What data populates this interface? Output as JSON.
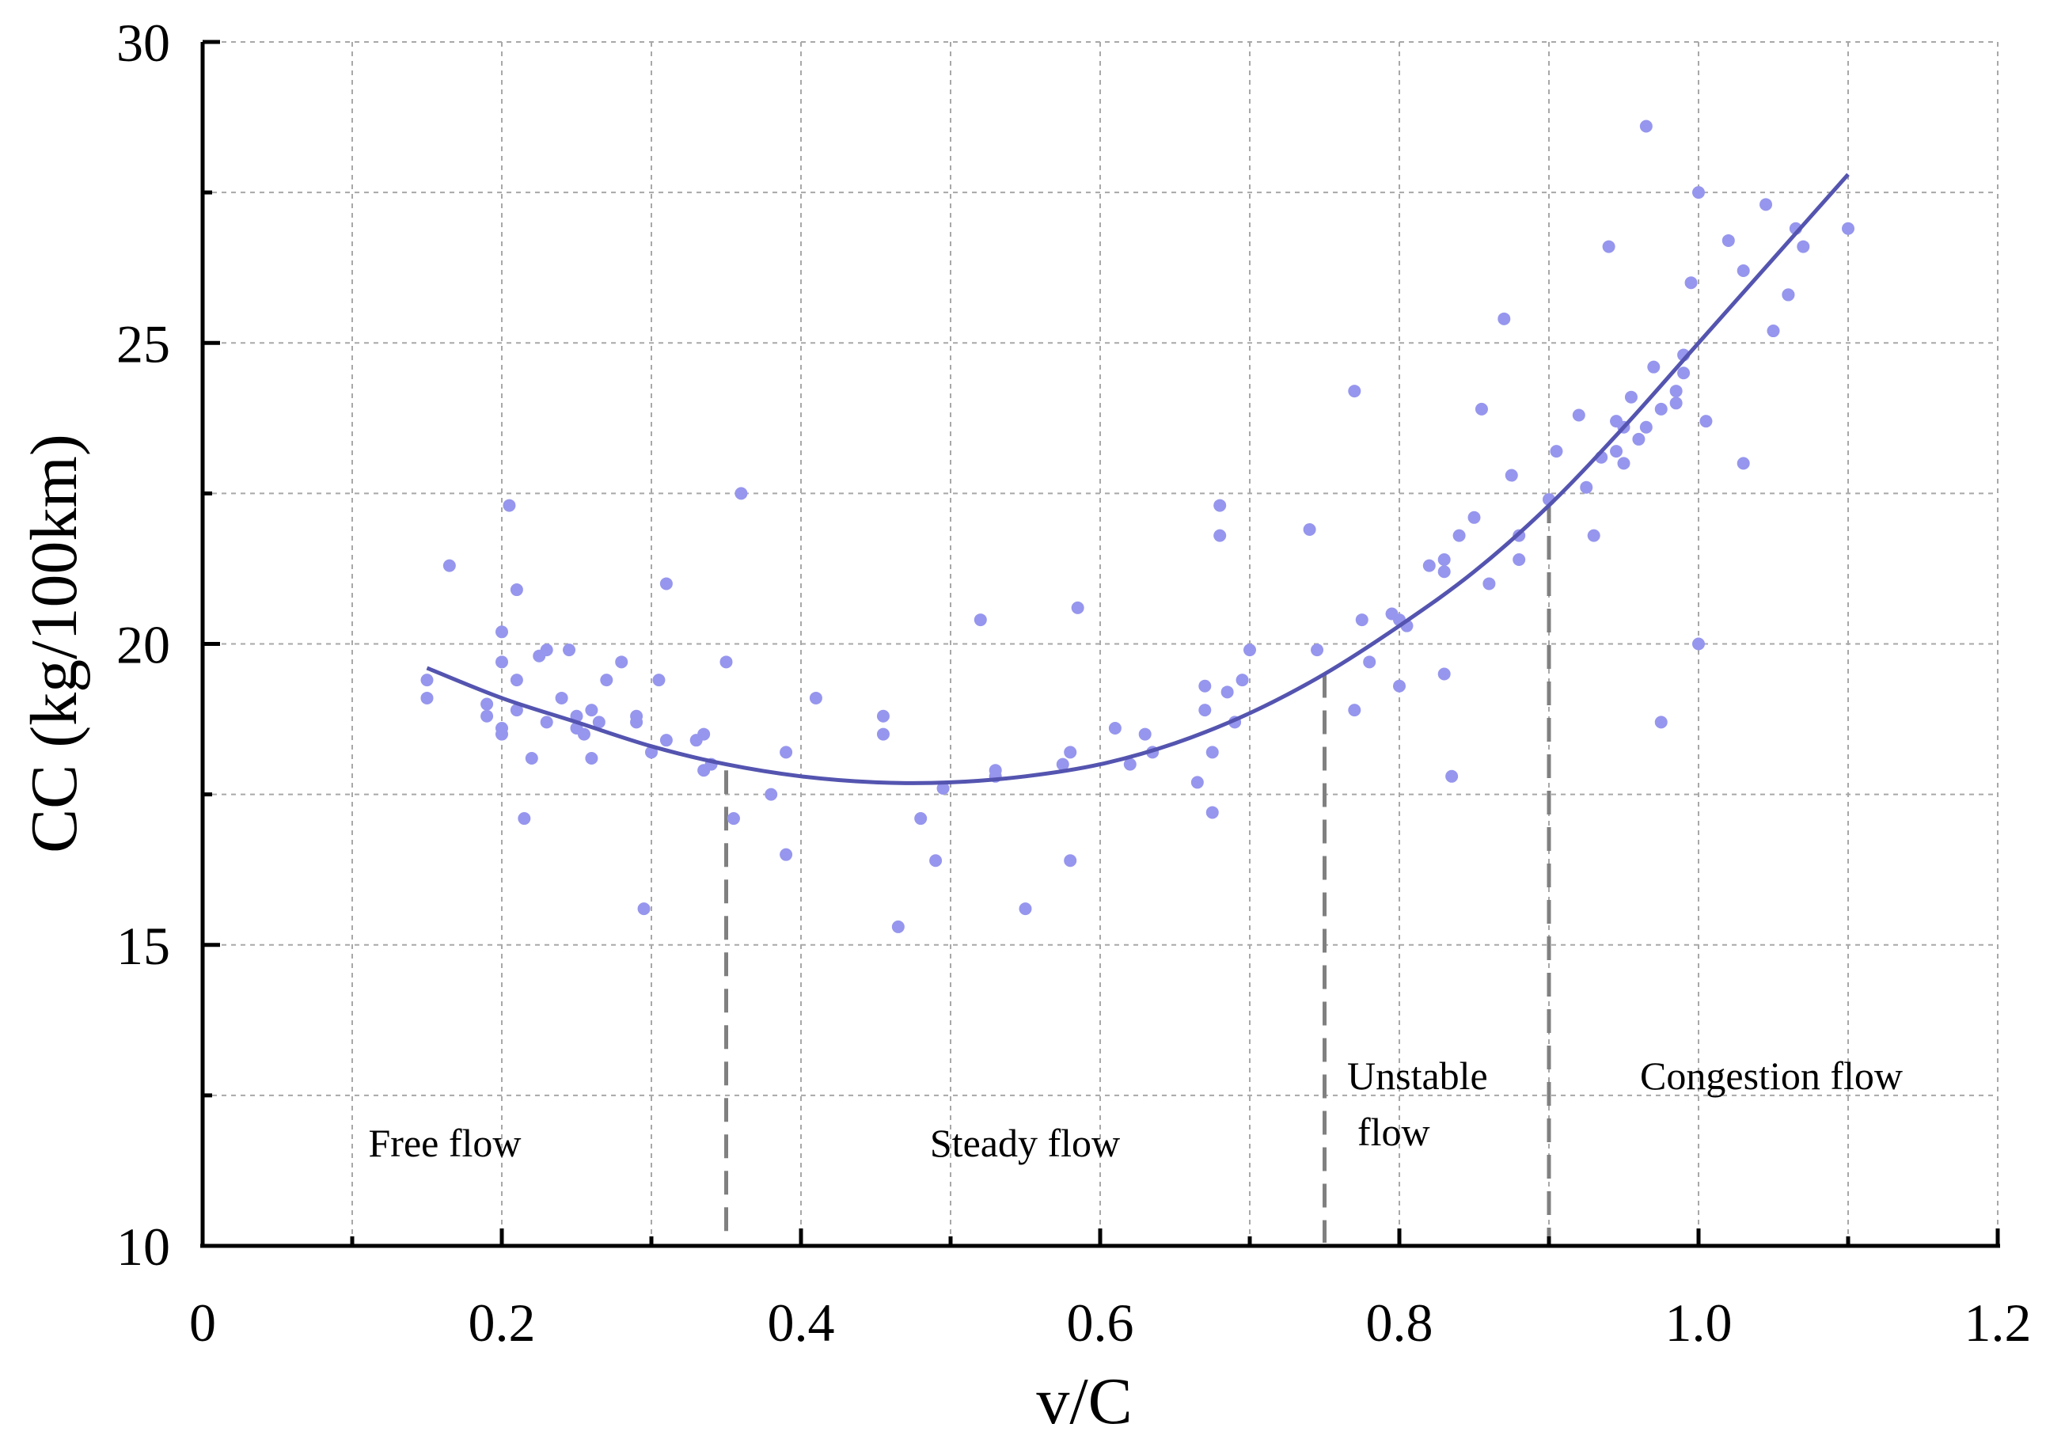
{
  "chart_data": {
    "type": "scatter",
    "title": "",
    "xlabel": "v/C",
    "ylabel": "CC (kg/100km)",
    "xlim": [
      0,
      1.2
    ],
    "ylim": [
      10,
      30
    ],
    "grid": true,
    "x_ticks": [
      {
        "value": 0,
        "label": "0"
      },
      {
        "value": 0.2,
        "label": "0.2"
      },
      {
        "value": 0.4,
        "label": "0.4"
      },
      {
        "value": 0.6,
        "label": "0.6"
      },
      {
        "value": 0.8,
        "label": "0.8"
      },
      {
        "value": 1.0,
        "label": "1.0"
      },
      {
        "value": 1.2,
        "label": "1.2"
      }
    ],
    "x_minor_ticks": [
      0.1,
      0.3,
      0.5,
      0.7,
      0.9,
      1.1
    ],
    "y_ticks": [
      {
        "value": 10,
        "label": "10"
      },
      {
        "value": 15,
        "label": "15"
      },
      {
        "value": 20,
        "label": "20"
      },
      {
        "value": 25,
        "label": "25"
      },
      {
        "value": 30,
        "label": "30"
      }
    ],
    "y_minor_ticks": [
      12.5,
      17.5,
      22.5,
      27.5
    ],
    "colors": {
      "points": "#9696ee",
      "fit_line": "#5454b0",
      "boundaries": "#808080",
      "grid": "#a8a8a8",
      "axes": "#000000"
    },
    "series": [
      {
        "name": "observations",
        "type": "scatter",
        "points": [
          [
            0.15,
            19.4
          ],
          [
            0.15,
            19.1
          ],
          [
            0.165,
            21.3
          ],
          [
            0.19,
            19.0
          ],
          [
            0.19,
            18.8
          ],
          [
            0.2,
            20.2
          ],
          [
            0.2,
            19.7
          ],
          [
            0.2,
            18.5
          ],
          [
            0.2,
            18.6
          ],
          [
            0.205,
            22.3
          ],
          [
            0.21,
            20.9
          ],
          [
            0.21,
            19.4
          ],
          [
            0.21,
            18.9
          ],
          [
            0.215,
            17.1
          ],
          [
            0.22,
            18.1
          ],
          [
            0.225,
            19.8
          ],
          [
            0.23,
            19.9
          ],
          [
            0.23,
            18.7
          ],
          [
            0.24,
            19.1
          ],
          [
            0.245,
            19.9
          ],
          [
            0.25,
            18.6
          ],
          [
            0.25,
            18.8
          ],
          [
            0.255,
            18.5
          ],
          [
            0.26,
            18.1
          ],
          [
            0.26,
            18.9
          ],
          [
            0.265,
            18.7
          ],
          [
            0.27,
            19.4
          ],
          [
            0.28,
            19.7
          ],
          [
            0.29,
            18.7
          ],
          [
            0.29,
            18.8
          ],
          [
            0.295,
            15.6
          ],
          [
            0.3,
            18.2
          ],
          [
            0.305,
            19.4
          ],
          [
            0.31,
            18.4
          ],
          [
            0.31,
            21.0
          ],
          [
            0.33,
            18.4
          ],
          [
            0.335,
            18.5
          ],
          [
            0.335,
            17.9
          ],
          [
            0.34,
            18.0
          ],
          [
            0.35,
            19.7
          ],
          [
            0.355,
            17.1
          ],
          [
            0.36,
            22.5
          ],
          [
            0.38,
            17.5
          ],
          [
            0.39,
            18.2
          ],
          [
            0.39,
            16.5
          ],
          [
            0.41,
            19.1
          ],
          [
            0.455,
            18.8
          ],
          [
            0.455,
            18.5
          ],
          [
            0.465,
            15.3
          ],
          [
            0.48,
            17.1
          ],
          [
            0.49,
            16.4
          ],
          [
            0.495,
            17.6
          ],
          [
            0.52,
            20.4
          ],
          [
            0.53,
            17.8
          ],
          [
            0.53,
            17.9
          ],
          [
            0.55,
            15.6
          ],
          [
            0.575,
            18.0
          ],
          [
            0.58,
            16.4
          ],
          [
            0.58,
            18.2
          ],
          [
            0.585,
            20.6
          ],
          [
            0.61,
            18.6
          ],
          [
            0.62,
            18.0
          ],
          [
            0.63,
            18.5
          ],
          [
            0.635,
            18.2
          ],
          [
            0.665,
            17.7
          ],
          [
            0.67,
            19.3
          ],
          [
            0.67,
            18.9
          ],
          [
            0.675,
            17.2
          ],
          [
            0.675,
            18.2
          ],
          [
            0.68,
            21.8
          ],
          [
            0.68,
            22.3
          ],
          [
            0.685,
            19.2
          ],
          [
            0.69,
            18.7
          ],
          [
            0.695,
            19.4
          ],
          [
            0.7,
            19.9
          ],
          [
            0.74,
            21.9
          ],
          [
            0.745,
            19.9
          ],
          [
            0.77,
            24.2
          ],
          [
            0.77,
            18.9
          ],
          [
            0.775,
            20.4
          ],
          [
            0.78,
            19.7
          ],
          [
            0.795,
            20.5
          ],
          [
            0.8,
            20.4
          ],
          [
            0.8,
            19.3
          ],
          [
            0.805,
            20.3
          ],
          [
            0.82,
            21.3
          ],
          [
            0.83,
            21.2
          ],
          [
            0.83,
            21.4
          ],
          [
            0.83,
            19.5
          ],
          [
            0.835,
            17.8
          ],
          [
            0.84,
            21.8
          ],
          [
            0.85,
            22.1
          ],
          [
            0.855,
            23.9
          ],
          [
            0.86,
            21.0
          ],
          [
            0.87,
            25.4
          ],
          [
            0.875,
            22.8
          ],
          [
            0.88,
            21.4
          ],
          [
            0.88,
            21.8
          ],
          [
            0.9,
            22.4
          ],
          [
            0.905,
            23.2
          ],
          [
            0.92,
            23.8
          ],
          [
            0.925,
            22.6
          ],
          [
            0.93,
            21.8
          ],
          [
            0.935,
            23.1
          ],
          [
            0.94,
            26.6
          ],
          [
            0.945,
            23.7
          ],
          [
            0.945,
            23.2
          ],
          [
            0.95,
            23.0
          ],
          [
            0.95,
            23.6
          ],
          [
            0.955,
            24.1
          ],
          [
            0.96,
            23.4
          ],
          [
            0.965,
            23.6
          ],
          [
            0.965,
            28.6
          ],
          [
            0.97,
            24.6
          ],
          [
            0.975,
            23.9
          ],
          [
            0.975,
            18.7
          ],
          [
            0.985,
            24.2
          ],
          [
            0.985,
            24.0
          ],
          [
            0.99,
            24.5
          ],
          [
            0.99,
            24.8
          ],
          [
            0.995,
            26.0
          ],
          [
            1.0,
            27.5
          ],
          [
            1.0,
            20.0
          ],
          [
            1.005,
            23.7
          ],
          [
            1.02,
            26.7
          ],
          [
            1.03,
            26.2
          ],
          [
            1.03,
            23.0
          ],
          [
            1.045,
            27.3
          ],
          [
            1.05,
            25.2
          ],
          [
            1.06,
            25.8
          ],
          [
            1.06,
            25.8
          ],
          [
            1.065,
            26.9
          ],
          [
            1.07,
            26.6
          ],
          [
            1.1,
            26.9
          ]
        ]
      },
      {
        "name": "quadratic fit",
        "type": "line",
        "x": [
          0.15,
          0.2,
          0.25,
          0.3,
          0.35,
          0.4,
          0.45,
          0.5,
          0.55,
          0.6,
          0.65,
          0.7,
          0.75,
          0.8,
          0.85,
          0.9,
          0.95,
          1.0,
          1.05,
          1.1
        ],
        "y": [
          19.6,
          19.1,
          18.7,
          18.3,
          18.0,
          17.8,
          17.7,
          17.7,
          17.8,
          18.0,
          18.35,
          18.85,
          19.5,
          20.3,
          21.2,
          22.3,
          23.6,
          25.0,
          26.4,
          27.8
        ]
      }
    ],
    "boundaries": [
      {
        "x": 0.35,
        "y_top": 17.9
      },
      {
        "x": 0.75,
        "y_top": 19.5
      },
      {
        "x": 0.9,
        "y_top": 22.4
      }
    ],
    "regions": [
      {
        "label": "Free flow",
        "lines": [
          "Free flow"
        ]
      },
      {
        "label": "Steady flow",
        "lines": [
          "Steady flow"
        ]
      },
      {
        "label": "Unstable flow",
        "lines": [
          "Unstable",
          "flow"
        ]
      },
      {
        "label": "Congestion flow",
        "lines": [
          "Congestion flow"
        ]
      }
    ]
  }
}
